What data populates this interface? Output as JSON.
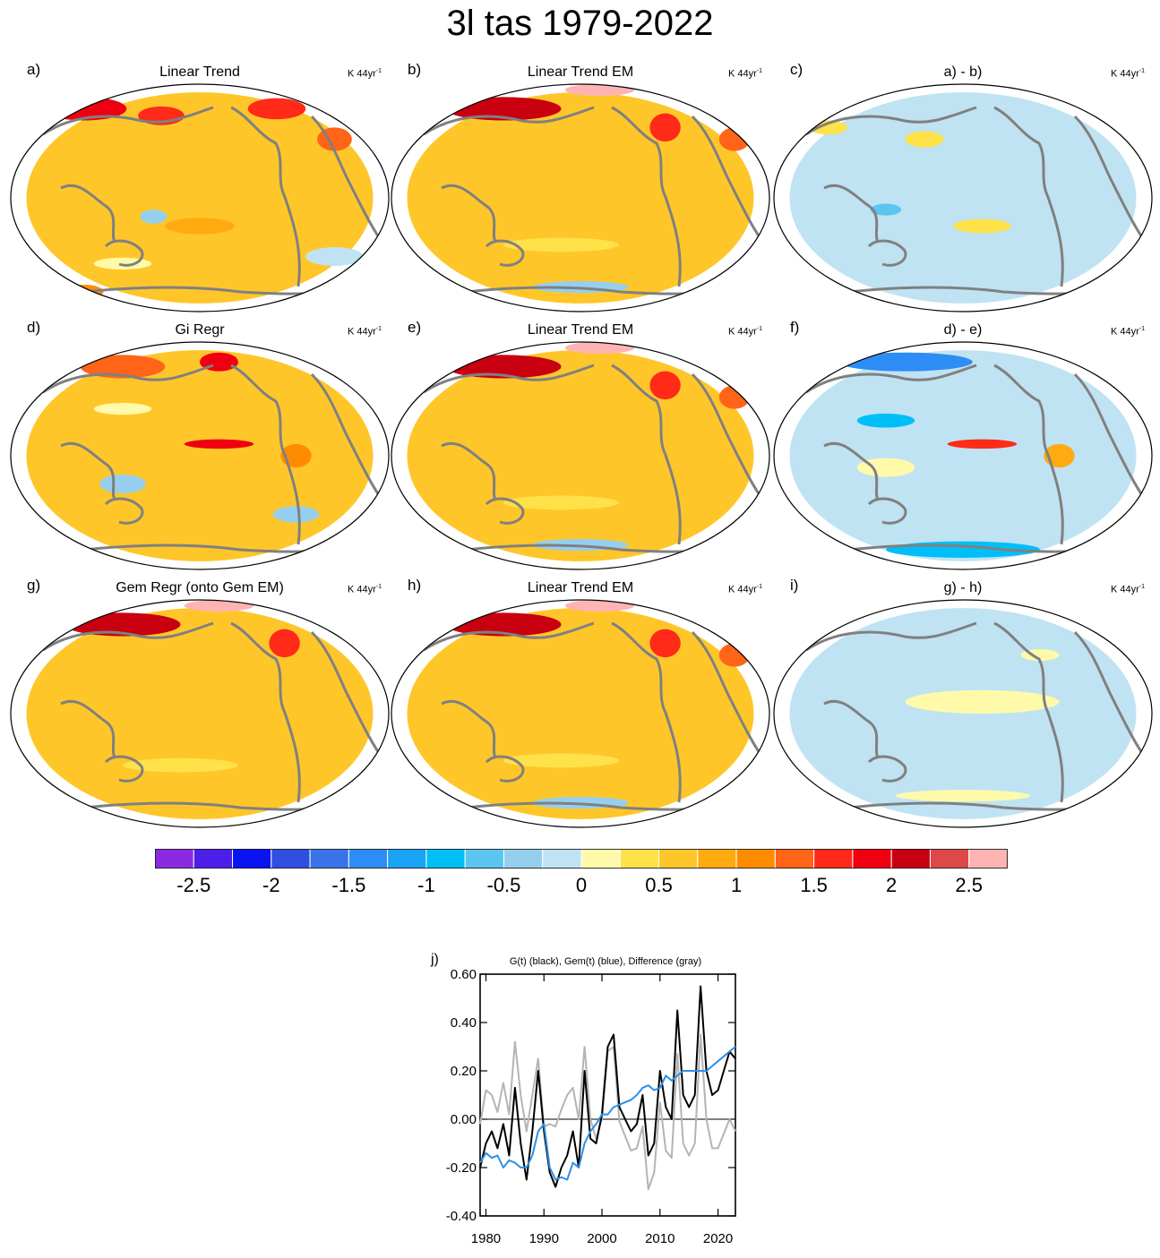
{
  "title": "3l tas 1979-2022",
  "units_text": "K 44yr",
  "units_sup": "-1",
  "panels": [
    {
      "letter": "a)",
      "title": "Linear Trend",
      "pattern": "obs"
    },
    {
      "letter": "b)",
      "title": "Linear Trend EM",
      "pattern": "em"
    },
    {
      "letter": "c)",
      "title": "a) - b)",
      "pattern": "diff_ab"
    },
    {
      "letter": "d)",
      "title": "Gi Regr",
      "pattern": "gi"
    },
    {
      "letter": "e)",
      "title": "Linear Trend EM",
      "pattern": "em"
    },
    {
      "letter": "f)",
      "title": "d) - e)",
      "pattern": "diff_de"
    },
    {
      "letter": "g)",
      "title": "Gem Regr (onto Gem EM)",
      "pattern": "gem"
    },
    {
      "letter": "h)",
      "title": "Linear Trend EM",
      "pattern": "em"
    },
    {
      "letter": "i)",
      "title": "g) - h)",
      "pattern": "diff_gh"
    }
  ],
  "colorbar": {
    "colors": [
      "#8a2be2",
      "#4b1fe8",
      "#0a14f0",
      "#2e4fe0",
      "#3a73e8",
      "#2e8cf5",
      "#1aa3f5",
      "#00bff8",
      "#5ac6f0",
      "#96cfee",
      "#bfe3f3",
      "#fffaaa",
      "#ffe14a",
      "#ffc62a",
      "#ffaa10",
      "#ff8c00",
      "#ff6418",
      "#ff2a18",
      "#ee0010",
      "#c80010",
      "#dd4848",
      "#ffb4b4"
    ],
    "tick_labels": [
      "-2.5",
      "-2",
      "-1.5",
      "-1",
      "-0.5",
      "0",
      "0.5",
      "1",
      "1.5",
      "2",
      "2.5"
    ]
  },
  "timeseries": {
    "letter": "j)",
    "title": "G(t)  (black), Gem(t) (blue), Difference (gray)",
    "y_ticks": [
      "0.60",
      "0.40",
      "0.20",
      "0.00",
      "-0.20",
      "-0.40"
    ],
    "x_ticks": [
      "1980",
      "1990",
      "2000",
      "2010",
      "2020"
    ]
  },
  "chart_data": {
    "type": "line",
    "title": "G(t)  (black), Gem(t) (blue), Difference (gray)",
    "xlim": [
      1979,
      2023
    ],
    "ylim": [
      -0.4,
      0.6
    ],
    "series": [
      {
        "name": "G(t)",
        "color": "#000000",
        "x": [
          1979,
          1980,
          1981,
          1982,
          1983,
          1984,
          1985,
          1986,
          1987,
          1988,
          1989,
          1990,
          1991,
          1992,
          1993,
          1994,
          1995,
          1996,
          1997,
          1998,
          1999,
          2000,
          2001,
          2002,
          2003,
          2004,
          2005,
          2006,
          2007,
          2008,
          2009,
          2010,
          2011,
          2012,
          2013,
          2014,
          2015,
          2016,
          2017,
          2018,
          2019,
          2020,
          2021,
          2022,
          2023
        ],
        "values": [
          -0.2,
          -0.1,
          -0.05,
          -0.12,
          -0.02,
          -0.15,
          0.13,
          -0.1,
          -0.25,
          -0.05,
          0.2,
          -0.05,
          -0.22,
          -0.28,
          -0.2,
          -0.15,
          -0.05,
          -0.2,
          0.2,
          -0.08,
          -0.1,
          0.02,
          0.3,
          0.35,
          0.05,
          0.0,
          -0.05,
          -0.02,
          0.1,
          -0.15,
          -0.1,
          0.2,
          0.05,
          0.0,
          0.45,
          0.1,
          0.05,
          0.1,
          0.55,
          0.2,
          0.1,
          0.12,
          0.2,
          0.28,
          0.25
        ]
      },
      {
        "name": "Gem(t)",
        "color": "#2e8fe6",
        "x": [
          1979,
          1980,
          1981,
          1982,
          1983,
          1984,
          1985,
          1986,
          1987,
          1988,
          1989,
          1990,
          1991,
          1992,
          1993,
          1994,
          1995,
          1996,
          1997,
          1998,
          1999,
          2000,
          2001,
          2002,
          2003,
          2004,
          2005,
          2006,
          2007,
          2008,
          2009,
          2010,
          2011,
          2012,
          2013,
          2014,
          2015,
          2016,
          2017,
          2018,
          2019,
          2020,
          2021,
          2022,
          2023
        ],
        "values": [
          -0.18,
          -0.14,
          -0.16,
          -0.15,
          -0.2,
          -0.17,
          -0.18,
          -0.2,
          -0.2,
          -0.15,
          -0.05,
          -0.02,
          -0.2,
          -0.25,
          -0.24,
          -0.25,
          -0.18,
          -0.2,
          -0.1,
          -0.05,
          -0.02,
          0.02,
          0.02,
          0.05,
          0.06,
          0.07,
          0.08,
          0.1,
          0.13,
          0.14,
          0.12,
          0.13,
          0.18,
          0.16,
          0.18,
          0.2,
          0.2,
          0.2,
          0.2,
          0.2,
          0.22,
          0.24,
          0.26,
          0.28,
          0.3
        ]
      },
      {
        "name": "Difference",
        "color": "#b4b4b4",
        "x": [
          1979,
          1980,
          1981,
          1982,
          1983,
          1984,
          1985,
          1986,
          1987,
          1988,
          1989,
          1990,
          1991,
          1992,
          1993,
          1994,
          1995,
          1996,
          1997,
          1998,
          1999,
          2000,
          2001,
          2002,
          2003,
          2004,
          2005,
          2006,
          2007,
          2008,
          2009,
          2010,
          2011,
          2012,
          2013,
          2014,
          2015,
          2016,
          2017,
          2018,
          2019,
          2020,
          2021,
          2022,
          2023
        ],
        "values": [
          -0.02,
          0.12,
          0.1,
          0.03,
          0.15,
          0.02,
          0.32,
          0.1,
          -0.05,
          0.1,
          0.25,
          -0.03,
          -0.02,
          -0.03,
          0.04,
          0.1,
          0.13,
          0.0,
          0.3,
          0.0,
          -0.08,
          0.0,
          0.28,
          0.3,
          -0.01,
          -0.07,
          -0.13,
          -0.12,
          -0.03,
          -0.29,
          -0.22,
          0.07,
          -0.13,
          -0.16,
          0.27,
          -0.1,
          -0.15,
          -0.1,
          0.35,
          0.0,
          -0.12,
          -0.12,
          -0.06,
          0.0,
          -0.05
        ]
      }
    ]
  }
}
